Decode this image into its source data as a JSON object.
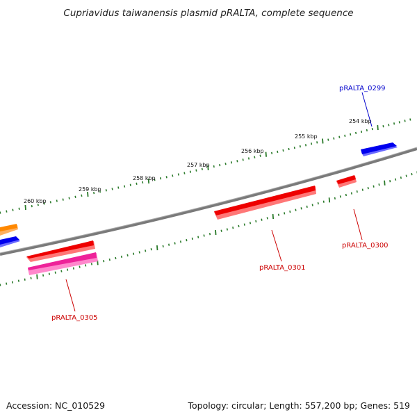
{
  "title": "Cupriavidus taiwanensis plasmid pRALTA, complete sequence",
  "footer": {
    "accession": "Accession: NC_010529",
    "topology": "Topology: circular; Length: 557,200 bp; Genes: 519"
  },
  "scale_labels": [
    "254 kbp",
    "255 kbp",
    "256 kbp",
    "257 kbp",
    "258 kbp",
    "259 kbp",
    "260 kbp"
  ],
  "gene_labels": [
    {
      "text": "pRALTA_0299",
      "color": "#0000cc"
    },
    {
      "text": "pRALTA_0300",
      "color": "#cc0000"
    },
    {
      "text": "pRALTA_0301",
      "color": "#cc0000"
    },
    {
      "text": "pRALTA_0305",
      "color": "#cc0000"
    }
  ],
  "colors": {
    "backbone": "#7a7a7a",
    "ticks": "#2a7a2a",
    "forward_gene": "#0000ee",
    "reverse_gene": "#ee0000",
    "pink_gene": "#ee2299",
    "orange_gene": "#ff8800"
  }
}
